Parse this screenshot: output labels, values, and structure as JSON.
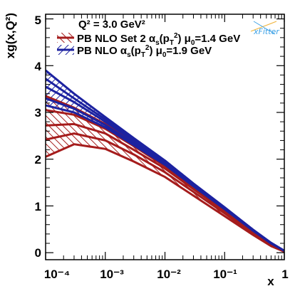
{
  "chart_data": {
    "type": "area",
    "title": "Q² = 3.0 GeV²",
    "xlabel": "x",
    "ylabel": "xg(x,Q²)",
    "xscale": "log",
    "xlim": [
      0.0001,
      1
    ],
    "ylim": [
      -0.15,
      5.1
    ],
    "x_tick_labels": [
      "10⁻⁴",
      "10⁻³",
      "10⁻²",
      "10⁻¹",
      "1"
    ],
    "y_tick_labels": [
      "0",
      "1",
      "2",
      "3",
      "4",
      "5"
    ],
    "watermark": "xFitter",
    "legend_position": "top-left",
    "series": [
      {
        "name": "PB NLO Set 2 αs(pT²) μ0=1.4 GeV",
        "legend_main": "PB NLO Set 2 ",
        "legend_tail": "=1.4 GeV",
        "color": "#a51c1c",
        "style": "hatched band",
        "x": [
          0.0001,
          0.0003,
          0.001,
          0.003,
          0.01,
          0.03,
          0.1,
          0.3,
          0.6,
          1
        ],
        "upper": [
          3.35,
          3.1,
          2.75,
          2.35,
          1.9,
          1.45,
          0.95,
          0.48,
          0.2,
          0.04
        ],
        "lower": [
          2.05,
          2.32,
          2.22,
          1.95,
          1.62,
          1.22,
          0.78,
          0.38,
          0.14,
          0.02
        ],
        "curves": [
          [
            3.35,
            3.1,
            2.75,
            2.35,
            1.9,
            1.45,
            0.95,
            0.48,
            0.2,
            0.04
          ],
          [
            3.05,
            2.95,
            2.65,
            2.28,
            1.85,
            1.4,
            0.92,
            0.46,
            0.19,
            0.03
          ],
          [
            2.72,
            2.75,
            2.55,
            2.2,
            1.8,
            1.36,
            0.89,
            0.44,
            0.18,
            0.03
          ],
          [
            2.42,
            2.55,
            2.4,
            2.1,
            1.72,
            1.3,
            0.84,
            0.41,
            0.16,
            0.02
          ],
          [
            2.05,
            2.32,
            2.22,
            1.95,
            1.62,
            1.22,
            0.78,
            0.38,
            0.14,
            0.02
          ]
        ]
      },
      {
        "name": "PB NLO αs(pT²) μ0=1.9 GeV",
        "legend_main": "PB NLO ",
        "legend_tail": "=1.9 GeV",
        "color": "#1c22a0",
        "style": "hatched band",
        "x": [
          0.0001,
          0.0003,
          0.001,
          0.003,
          0.01,
          0.03,
          0.1,
          0.3,
          0.6,
          1
        ],
        "upper": [
          3.9,
          3.4,
          2.9,
          2.45,
          1.97,
          1.48,
          0.97,
          0.49,
          0.21,
          0.04
        ],
        "lower": [
          3.15,
          3.0,
          2.68,
          2.3,
          1.88,
          1.42,
          0.93,
          0.47,
          0.2,
          0.04
        ],
        "curves": [
          [
            3.9,
            3.4,
            2.9,
            2.45,
            1.97,
            1.48,
            0.97,
            0.49,
            0.21,
            0.04
          ],
          [
            3.72,
            3.3,
            2.85,
            2.42,
            1.95,
            1.47,
            0.96,
            0.49,
            0.21,
            0.04
          ],
          [
            3.55,
            3.22,
            2.8,
            2.39,
            1.93,
            1.46,
            0.95,
            0.48,
            0.2,
            0.04
          ],
          [
            3.3,
            3.08,
            2.73,
            2.34,
            1.9,
            1.44,
            0.94,
            0.47,
            0.2,
            0.04
          ],
          [
            3.15,
            3.0,
            2.68,
            2.3,
            1.88,
            1.42,
            0.93,
            0.47,
            0.2,
            0.04
          ]
        ]
      }
    ]
  }
}
